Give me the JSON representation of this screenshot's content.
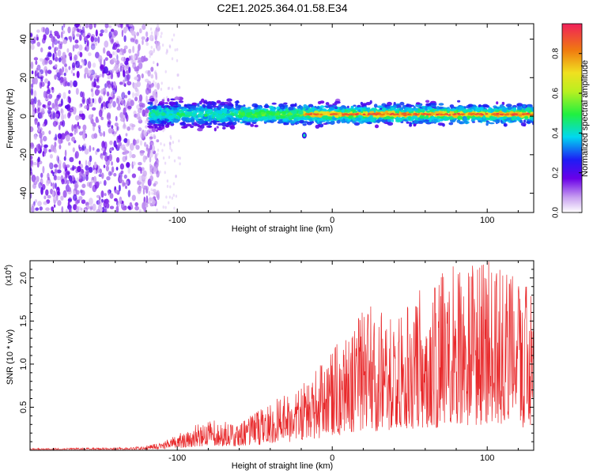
{
  "title": "C2E1.2025.364.01.58.E34",
  "chart_data": [
    {
      "type": "heatmap",
      "title": "C2E1.2025.364.01.58.E34",
      "xlabel": "Height of straight line (km)",
      "ylabel": "Frequency (Hz)",
      "xlim": [
        -195,
        130
      ],
      "ylim": [
        -50,
        48
      ],
      "xticks": [
        -100,
        0,
        100
      ],
      "yticks": [
        -40,
        -20,
        0,
        20,
        40
      ],
      "colorbar": {
        "label": "Normalized spectral amplitude",
        "range": [
          0,
          0.95
        ],
        "ticks": [
          0.0,
          0.2,
          0.4,
          0.6,
          0.8
        ]
      },
      "features": {
        "broadband_noise_until_km": -118,
        "signal_start_km": -118,
        "signal_center_freq_hz": 1,
        "signal_halfwidth_hz": 5,
        "red_band_start_km": -20,
        "spot_km": -18,
        "spot_freq_hz": -10
      }
    },
    {
      "type": "line",
      "xlabel": "Height of straight line (km)",
      "ylabel": "SNR (10 * v/v)",
      "scale_label": "(x10",
      "scale_exponent": "4",
      "xlim": [
        -195,
        130
      ],
      "ylim": [
        0,
        2.2
      ],
      "xticks": [
        -100,
        0,
        100
      ],
      "yticks": [
        0.5,
        1.0,
        1.5,
        2.0
      ],
      "ytick_labels": [
        "0.5",
        "1.0",
        "1.5",
        "2.0"
      ],
      "color": "#e8292b",
      "envelope": {
        "x": [
          -195,
          -130,
          -120,
          -105,
          -90,
          -75,
          -60,
          -45,
          -30,
          -20,
          -10,
          0,
          10,
          20,
          40,
          60,
          80,
          100,
          115,
          130
        ],
        "y": [
          0.02,
          0.03,
          0.05,
          0.12,
          0.26,
          0.32,
          0.28,
          0.45,
          0.6,
          0.7,
          0.85,
          1.05,
          1.3,
          1.45,
          1.5,
          1.65,
          1.9,
          2.0,
          1.85,
          1.7
        ]
      }
    }
  ]
}
